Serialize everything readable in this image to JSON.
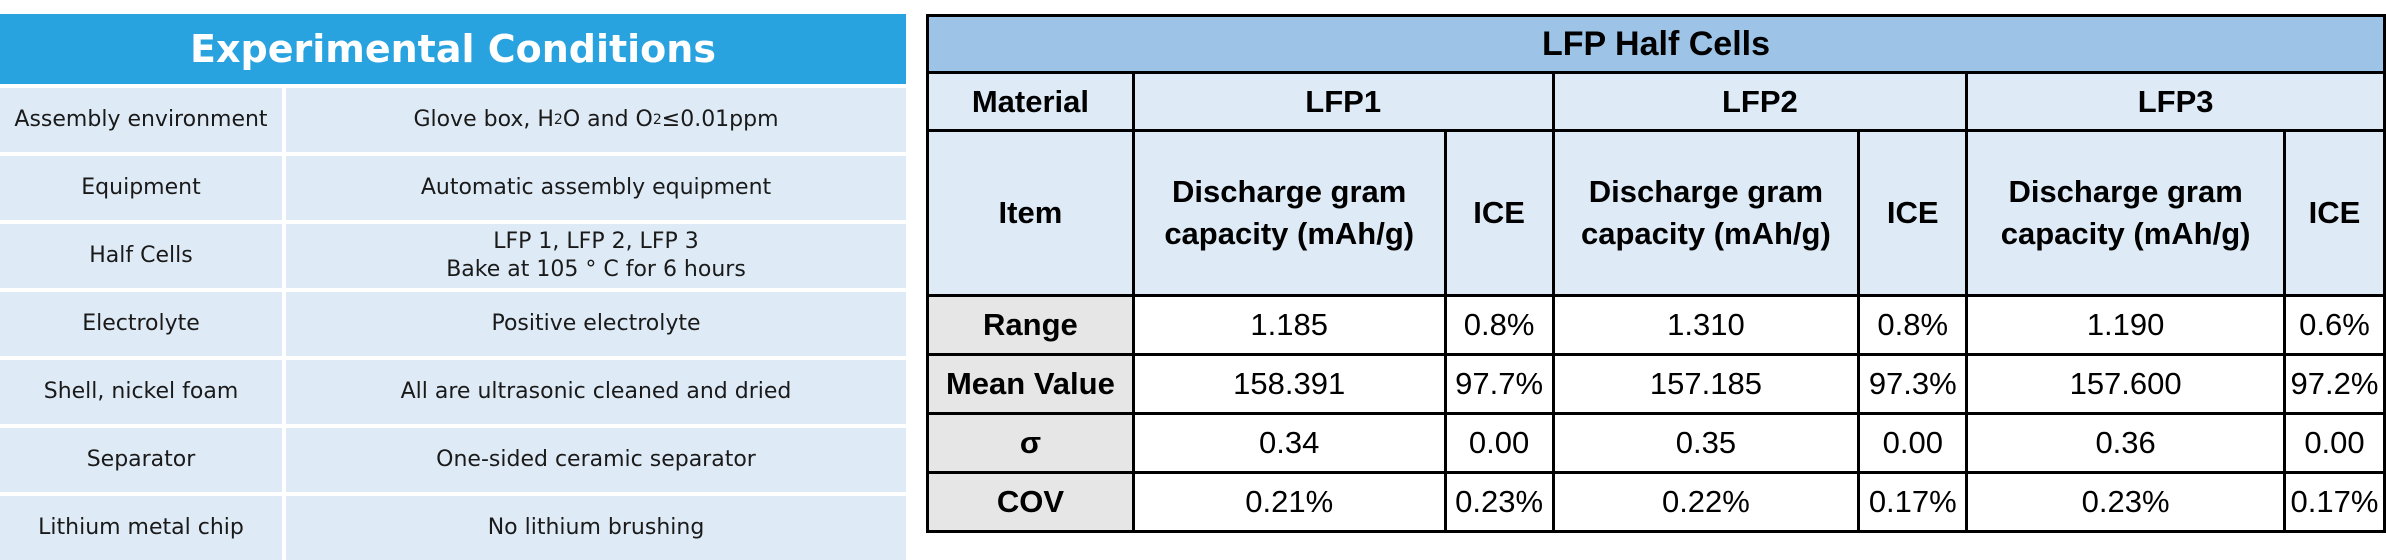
{
  "conditions": {
    "title": "Experimental Conditions",
    "rows": [
      {
        "label": "Assembly environment",
        "value": "Glove box, H",
        "sub1": "2",
        "mid": "O and O",
        "sub2": "2",
        "tail": "≤0.01ppm"
      },
      {
        "label": "Equipment",
        "value": "Automatic assembly equipment"
      },
      {
        "label": "Half Cells",
        "value": "LFP 1, LFP 2, LFP 3",
        "value2": "Bake at 105 ° C for 6 hours"
      },
      {
        "label": "Electrolyte",
        "value": "Positive electrolyte"
      },
      {
        "label": "Shell, nickel foam",
        "value": "All are ultrasonic cleaned and dried"
      },
      {
        "label": "Separator",
        "value": "One-sided ceramic separator"
      },
      {
        "label": "Lithium metal chip",
        "value": "No lithium brushing"
      }
    ]
  },
  "lfp_table": {
    "title": "LFP Half Cells",
    "material_label": "Material",
    "item_label": "Item",
    "materials": [
      "LFP1",
      "LFP2",
      "LFP3"
    ],
    "col_cap_line1": "Discharge gram",
    "col_cap_line2": "capacity (mAh/g)",
    "col_ice": "ICE",
    "rows": [
      {
        "name": "Range",
        "values": [
          "1.185",
          "0.8%",
          "1.310",
          "0.8%",
          "1.190",
          "0.6%"
        ]
      },
      {
        "name": "Mean Value",
        "values": [
          "158.391",
          "97.7%",
          "157.185",
          "97.3%",
          "157.600",
          "97.2%"
        ]
      },
      {
        "name": "σ",
        "values": [
          "0.34",
          "0.00",
          "0.35",
          "0.00",
          "0.36",
          "0.00"
        ]
      },
      {
        "name": "COV",
        "values": [
          "0.21%",
          "0.23%",
          "0.22%",
          "0.17%",
          "0.23%",
          "0.17%"
        ]
      }
    ]
  },
  "colors": {
    "conditions_header": "#29a3e0",
    "conditions_cell": "#deebf6",
    "table_title": "#9dc3e6",
    "table_header": "#deebf7",
    "row_header": "#e7e6e6"
  }
}
